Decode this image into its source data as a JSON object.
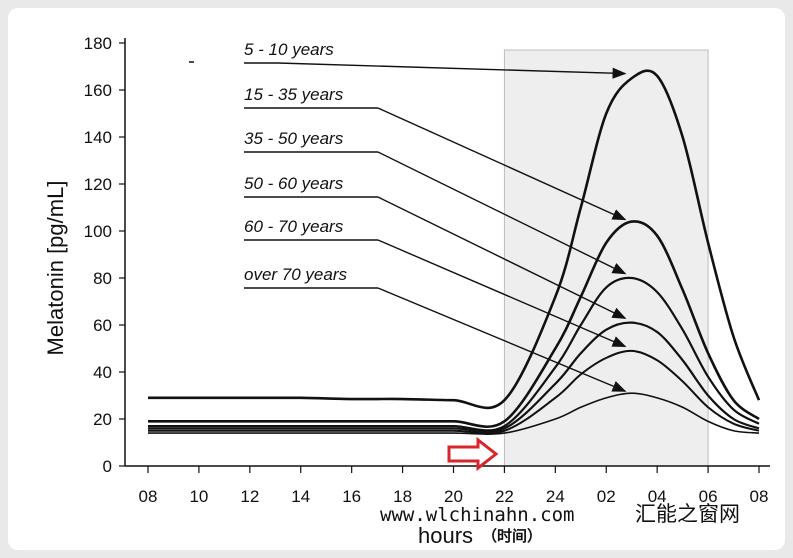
{
  "chart_data": {
    "type": "line",
    "title": "",
    "xlabel": "hours",
    "xlabel_sub": "（时间）",
    "ylabel": "Melatonin [pg/mL]",
    "x_ticks": [
      "08",
      "10",
      "12",
      "14",
      "16",
      "18",
      "20",
      "22",
      "24",
      "02",
      "04",
      "06",
      "08"
    ],
    "y_ticks": [
      "0",
      "20",
      "40",
      "60",
      "80",
      "100",
      "120",
      "140",
      "160",
      "180"
    ],
    "ylim": [
      0,
      180
    ],
    "x_axis_unit": "hours of day (clock), 08 to 08 next day",
    "x": [
      8,
      10,
      12,
      14,
      16,
      18,
      20,
      22,
      24,
      25,
      26,
      27,
      28,
      29,
      30,
      31,
      32
    ],
    "shaded_night_period": [
      "22",
      "06"
    ],
    "series": [
      {
        "label": "5 - 10 years",
        "values": [
          29,
          29,
          29,
          29,
          28.5,
          28.5,
          28,
          28,
          72,
          110,
          150,
          165,
          166,
          140,
          95,
          55,
          28
        ]
      },
      {
        "label": "15 - 35 years",
        "values": [
          19,
          19,
          19,
          19,
          19,
          19,
          19,
          19,
          50,
          72,
          95,
          104,
          98,
          75,
          48,
          28,
          20
        ]
      },
      {
        "label": "35 - 50 years",
        "values": [
          17,
          17,
          17,
          17,
          17,
          17,
          17,
          17,
          42,
          60,
          76,
          80,
          74,
          58,
          38,
          24,
          18
        ]
      },
      {
        "label": "50 - 60 years",
        "values": [
          16,
          16,
          16,
          16,
          16,
          16,
          16,
          16,
          35,
          48,
          58,
          61,
          57,
          45,
          30,
          20,
          16
        ]
      },
      {
        "label": "60 - 70 years",
        "values": [
          15,
          15,
          15,
          15,
          15,
          15,
          15,
          15,
          29,
          39,
          46,
          49,
          45,
          36,
          25,
          18,
          15
        ]
      },
      {
        "label": "over 70 years",
        "values": [
          14,
          14,
          14,
          14,
          14,
          14,
          14,
          14,
          20,
          25,
          29,
          31,
          29,
          25,
          19,
          15,
          14
        ]
      }
    ],
    "annotation_arrow_color": "#d9262c",
    "curve_color": "#111111"
  },
  "watermark": {
    "site": "www.wlchinahn.com",
    "name": "汇能之窗网"
  }
}
